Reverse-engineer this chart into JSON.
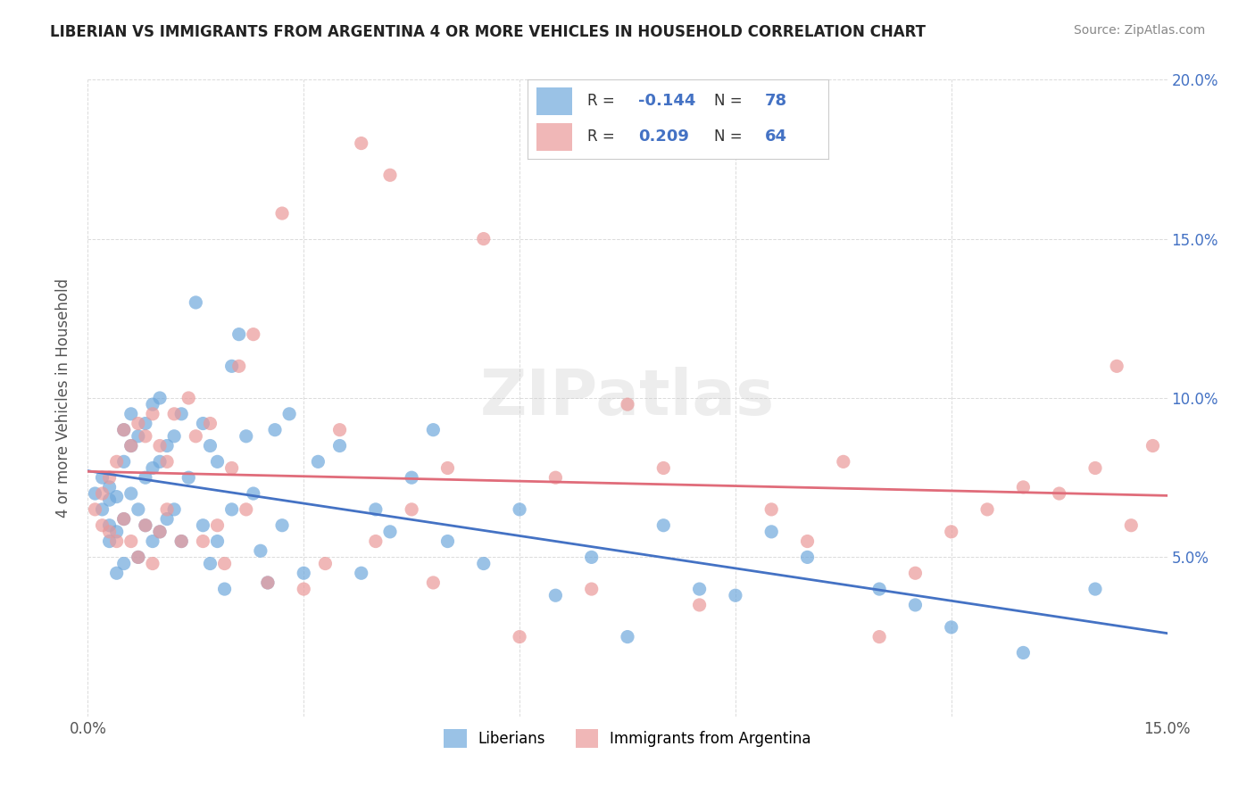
{
  "title": "LIBERIAN VS IMMIGRANTS FROM ARGENTINA 4 OR MORE VEHICLES IN HOUSEHOLD CORRELATION CHART",
  "source": "Source: ZipAtlas.com",
  "ylabel_label": "4 or more Vehicles in Household",
  "xmin": 0.0,
  "xmax": 0.15,
  "ymin": 0.0,
  "ymax": 0.2,
  "liberian_color": "#6fa8dc",
  "argentina_color": "#ea9999",
  "liberian_line_color": "#4472c4",
  "argentina_line_color": "#e06c7a",
  "legend_R_liberian": "-0.144",
  "legend_N_liberian": "78",
  "legend_R_argentina": "0.209",
  "legend_N_argentina": "64",
  "watermark": "ZIPatlas",
  "liberian_x": [
    0.001,
    0.002,
    0.002,
    0.003,
    0.003,
    0.003,
    0.003,
    0.004,
    0.004,
    0.004,
    0.005,
    0.005,
    0.005,
    0.005,
    0.006,
    0.006,
    0.006,
    0.007,
    0.007,
    0.007,
    0.008,
    0.008,
    0.008,
    0.009,
    0.009,
    0.009,
    0.01,
    0.01,
    0.01,
    0.011,
    0.011,
    0.012,
    0.012,
    0.013,
    0.013,
    0.014,
    0.015,
    0.016,
    0.016,
    0.017,
    0.017,
    0.018,
    0.018,
    0.019,
    0.02,
    0.02,
    0.021,
    0.022,
    0.023,
    0.024,
    0.025,
    0.026,
    0.027,
    0.028,
    0.03,
    0.032,
    0.035,
    0.038,
    0.04,
    0.042,
    0.045,
    0.048,
    0.05,
    0.055,
    0.06,
    0.065,
    0.07,
    0.075,
    0.08,
    0.085,
    0.09,
    0.095,
    0.1,
    0.11,
    0.115,
    0.12,
    0.13,
    0.14
  ],
  "liberian_y": [
    0.07,
    0.065,
    0.075,
    0.068,
    0.072,
    0.06,
    0.055,
    0.069,
    0.058,
    0.045,
    0.09,
    0.08,
    0.062,
    0.048,
    0.095,
    0.085,
    0.07,
    0.088,
    0.065,
    0.05,
    0.092,
    0.075,
    0.06,
    0.098,
    0.078,
    0.055,
    0.1,
    0.08,
    0.058,
    0.085,
    0.062,
    0.088,
    0.065,
    0.095,
    0.055,
    0.075,
    0.13,
    0.092,
    0.06,
    0.085,
    0.048,
    0.08,
    0.055,
    0.04,
    0.11,
    0.065,
    0.12,
    0.088,
    0.07,
    0.052,
    0.042,
    0.09,
    0.06,
    0.095,
    0.045,
    0.08,
    0.085,
    0.045,
    0.065,
    0.058,
    0.075,
    0.09,
    0.055,
    0.048,
    0.065,
    0.038,
    0.05,
    0.025,
    0.06,
    0.04,
    0.038,
    0.058,
    0.05,
    0.04,
    0.035,
    0.028,
    0.02,
    0.04
  ],
  "argentina_x": [
    0.001,
    0.002,
    0.002,
    0.003,
    0.003,
    0.004,
    0.004,
    0.005,
    0.005,
    0.006,
    0.006,
    0.007,
    0.007,
    0.008,
    0.008,
    0.009,
    0.009,
    0.01,
    0.01,
    0.011,
    0.011,
    0.012,
    0.013,
    0.014,
    0.015,
    0.016,
    0.017,
    0.018,
    0.019,
    0.02,
    0.021,
    0.022,
    0.023,
    0.025,
    0.027,
    0.03,
    0.033,
    0.035,
    0.038,
    0.04,
    0.042,
    0.045,
    0.048,
    0.05,
    0.055,
    0.06,
    0.065,
    0.07,
    0.075,
    0.08,
    0.085,
    0.095,
    0.1,
    0.105,
    0.11,
    0.115,
    0.12,
    0.125,
    0.13,
    0.135,
    0.14,
    0.143,
    0.145,
    0.148
  ],
  "argentina_y": [
    0.065,
    0.07,
    0.06,
    0.075,
    0.058,
    0.08,
    0.055,
    0.09,
    0.062,
    0.085,
    0.055,
    0.092,
    0.05,
    0.088,
    0.06,
    0.095,
    0.048,
    0.085,
    0.058,
    0.08,
    0.065,
    0.095,
    0.055,
    0.1,
    0.088,
    0.055,
    0.092,
    0.06,
    0.048,
    0.078,
    0.11,
    0.065,
    0.12,
    0.042,
    0.158,
    0.04,
    0.048,
    0.09,
    0.18,
    0.055,
    0.17,
    0.065,
    0.042,
    0.078,
    0.15,
    0.025,
    0.075,
    0.04,
    0.098,
    0.078,
    0.035,
    0.065,
    0.055,
    0.08,
    0.025,
    0.045,
    0.058,
    0.065,
    0.072,
    0.07,
    0.078,
    0.11,
    0.06,
    0.085
  ]
}
